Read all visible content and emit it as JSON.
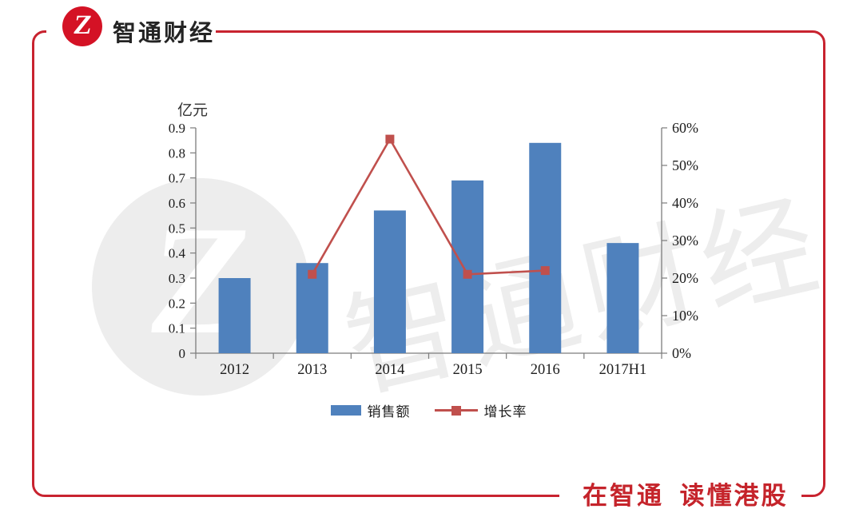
{
  "header": {
    "logo_glyph": "Z",
    "brand_name": "智通财经"
  },
  "footer": {
    "slogan": "在智通 读懂港股"
  },
  "watermark": {
    "logo_glyph": "Z",
    "text": "智通财经"
  },
  "chart_data": {
    "type": "bar",
    "title": "",
    "categories": [
      "2012",
      "2013",
      "2014",
      "2015",
      "2016",
      "2017H1"
    ],
    "series": [
      {
        "name": "销售额",
        "type": "bar",
        "axis": "left",
        "color": "#4f81bd",
        "values": [
          0.3,
          0.36,
          0.57,
          0.69,
          0.84,
          0.44
        ]
      },
      {
        "name": "增长率",
        "type": "line",
        "axis": "right",
        "color": "#c0504d",
        "marker": "square",
        "values": [
          null,
          21,
          57,
          21,
          22,
          null
        ]
      }
    ],
    "left_axis": {
      "title": "亿元",
      "min": 0,
      "max": 0.9,
      "tick_labels": [
        "0",
        "0.1",
        "0.2",
        "0.3",
        "0.4",
        "0.5",
        "0.6",
        "0.7",
        "0.8",
        "0.9"
      ]
    },
    "right_axis": {
      "title": "",
      "min": 0,
      "max": 60,
      "tick_labels": [
        "0%",
        "10%",
        "20%",
        "30%",
        "40%",
        "50%",
        "60%"
      ]
    },
    "legend": {
      "items": [
        "销售额",
        "增长率"
      ],
      "position": "bottom"
    },
    "grid": false
  },
  "colors": {
    "frame_red": "#c8232f",
    "slogan_red": "#c5242b",
    "logo_red": "#d41225",
    "bar_blue": "#4f81bd",
    "line_red": "#c0504d",
    "axis_gray": "#7c7c7c",
    "text_dark": "#1c1c1c",
    "watermark_gray": "#ededed"
  }
}
